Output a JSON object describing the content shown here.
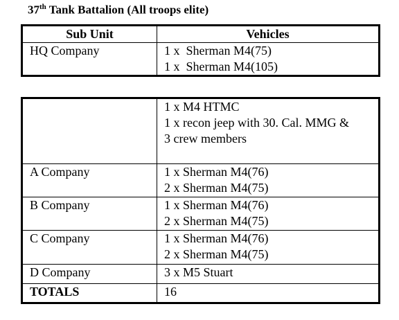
{
  "header": {
    "title": {
      "number": "37",
      "suffix": "th",
      "text": " Tank Battalion (All troops elite)"
    }
  },
  "table1": {
    "columns": [
      "Sub Unit",
      "Vehicles"
    ],
    "rows": [
      {
        "unit": "HQ Company",
        "vehicles": [
          "1 x  Sherman M4(75)",
          "1 x  Sherman M4(105)"
        ]
      }
    ]
  },
  "table2": {
    "rows": [
      {
        "vehicles": [
          "1 x M4 HTMC",
          "1 x recon jeep with 30. Cal. MMG &",
          "3 crew members"
        ]
      },
      {
        "unit": "A Company",
        "vehicles": [
          "1 x Sherman M4(76)",
          "2 x Sherman M4(75)"
        ]
      },
      {
        "unit": "B Company",
        "vehicles": [
          "1 x Sherman M4(76)",
          "2 x Sherman M4(75)"
        ]
      },
      {
        "unit": "C Company",
        "vehicles": [
          "1 x Sherman M4(76)",
          "2 x Sherman M4(75)"
        ]
      },
      {
        "unit": "D Company",
        "vehicles": [
          "3 x M5 Stuart"
        ]
      },
      {
        "unit": "TOTALS",
        "vehicles": [
          "16"
        ]
      }
    ]
  }
}
